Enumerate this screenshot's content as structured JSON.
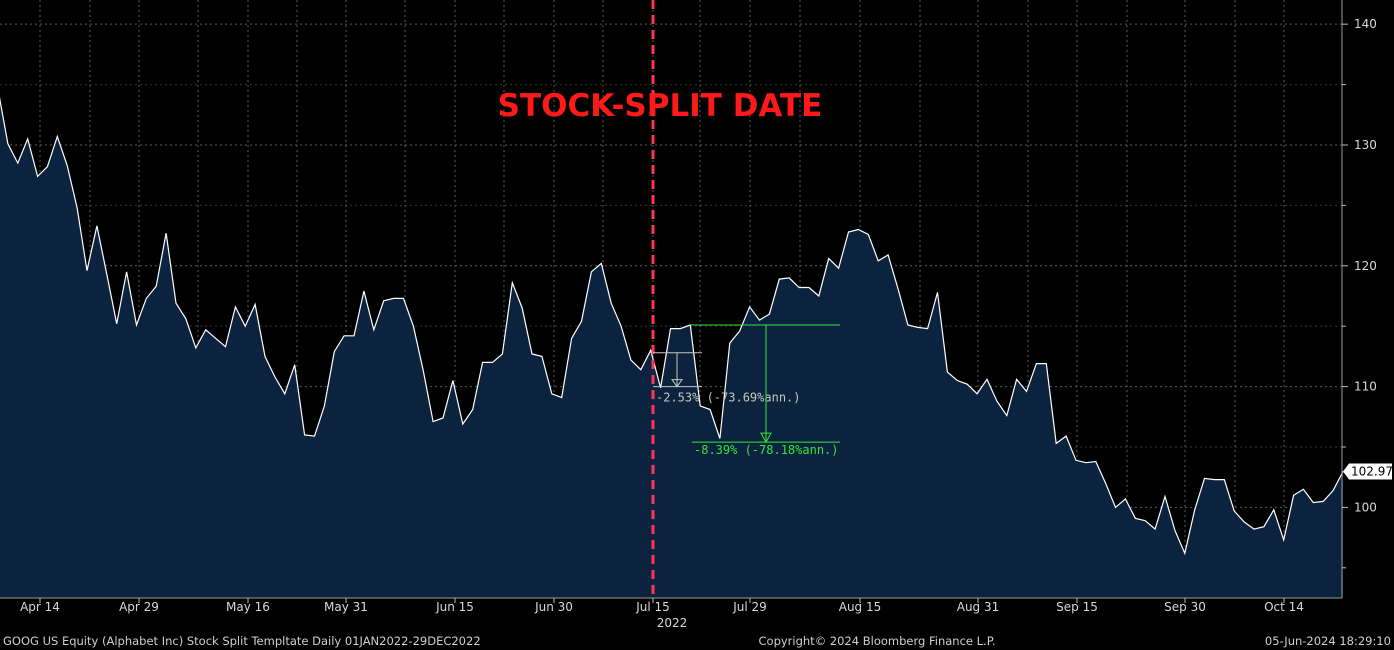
{
  "colors": {
    "background": "#000000",
    "area_fill": "#0c2340",
    "line": "#ffffff",
    "split_line": "#ff3355",
    "split_text": "#ff1a1a",
    "annotation_green": "#33e633",
    "annotation_white": "#c8c8b8"
  },
  "chart_data": {
    "type": "area",
    "title": "STOCK-SPLIT DATE",
    "ylim": [
      92.5,
      142
    ],
    "y_ticks": [
      "140",
      "130",
      "120",
      "110",
      "100"
    ],
    "x_ticks": [
      "Apr 14",
      "Apr 29",
      "May 16",
      "May 31",
      "Jun 15",
      "Jun 30",
      "Jul 15",
      "Jul 29",
      "Aug 15",
      "Aug 31",
      "Sep 15",
      "Sep 30",
      "Oct 14"
    ],
    "x_year_label": "2022",
    "grid": true,
    "last_value_label": "102.97",
    "split_date_label": "Jul 15",
    "series": [
      {
        "values": [
          134.6,
          130.1,
          128.5,
          130.5,
          127.4,
          128.2,
          130.7,
          128.3,
          124.8,
          119.6,
          123.3,
          119.3,
          115.2,
          119.5,
          115.1,
          117.3,
          118.3,
          122.7,
          116.9,
          115.6,
          113.2,
          114.7,
          114.0,
          113.3,
          116.6,
          115.0,
          116.8,
          112.5,
          110.8,
          109.4,
          111.8,
          106.0,
          105.9,
          108.4,
          112.9,
          114.2,
          114.2,
          117.9,
          114.7,
          117.1,
          117.3,
          117.3,
          115.0,
          111.3,
          107.1,
          107.4,
          110.5,
          106.9,
          108.1,
          112.0,
          112.0,
          112.7,
          118.6,
          116.5,
          112.7,
          112.5,
          109.4,
          109.1,
          114.0,
          115.4,
          119.5,
          120.2,
          116.9,
          115.0,
          112.2,
          111.4,
          113.0,
          109.9,
          114.8,
          114.8,
          115.1,
          108.4,
          108.1,
          105.7,
          113.6,
          114.6,
          116.6,
          115.5,
          116.0,
          118.9,
          119.0,
          118.2,
          118.2,
          117.5,
          120.6,
          119.8,
          122.8,
          123.0,
          122.6,
          120.4,
          120.9,
          118.1,
          115.1,
          114.9,
          114.8,
          117.8,
          111.2,
          110.5,
          110.2,
          109.4,
          110.6,
          108.8,
          107.6,
          110.6,
          109.6,
          111.9,
          111.9,
          105.3,
          105.9,
          103.9,
          103.7,
          103.8,
          102.0,
          100.0,
          100.7,
          99.1,
          98.9,
          98.2,
          100.9,
          98.1,
          96.2,
          99.8,
          102.4,
          102.3,
          102.3,
          99.7,
          98.8,
          98.2,
          98.4,
          99.8,
          97.3,
          101.0,
          101.5,
          100.4,
          100.5,
          101.4,
          102.97
        ]
      }
    ],
    "annotations": [
      {
        "label": "-2.53% (-73.69%ann.)",
        "from": 112.8,
        "to": 110.0
      },
      {
        "label": "-8.39% (-78.18%ann.)",
        "from": 115.1,
        "to": 105.4
      }
    ]
  },
  "footer": {
    "left": "GOOG US Equity (Alphabet Inc) Stock Split Templtate  Daily 01JAN2022-29DEC2022",
    "center": "Copyright© 2024 Bloomberg Finance L.P.",
    "right": "05-Jun-2024 18:29:10"
  }
}
